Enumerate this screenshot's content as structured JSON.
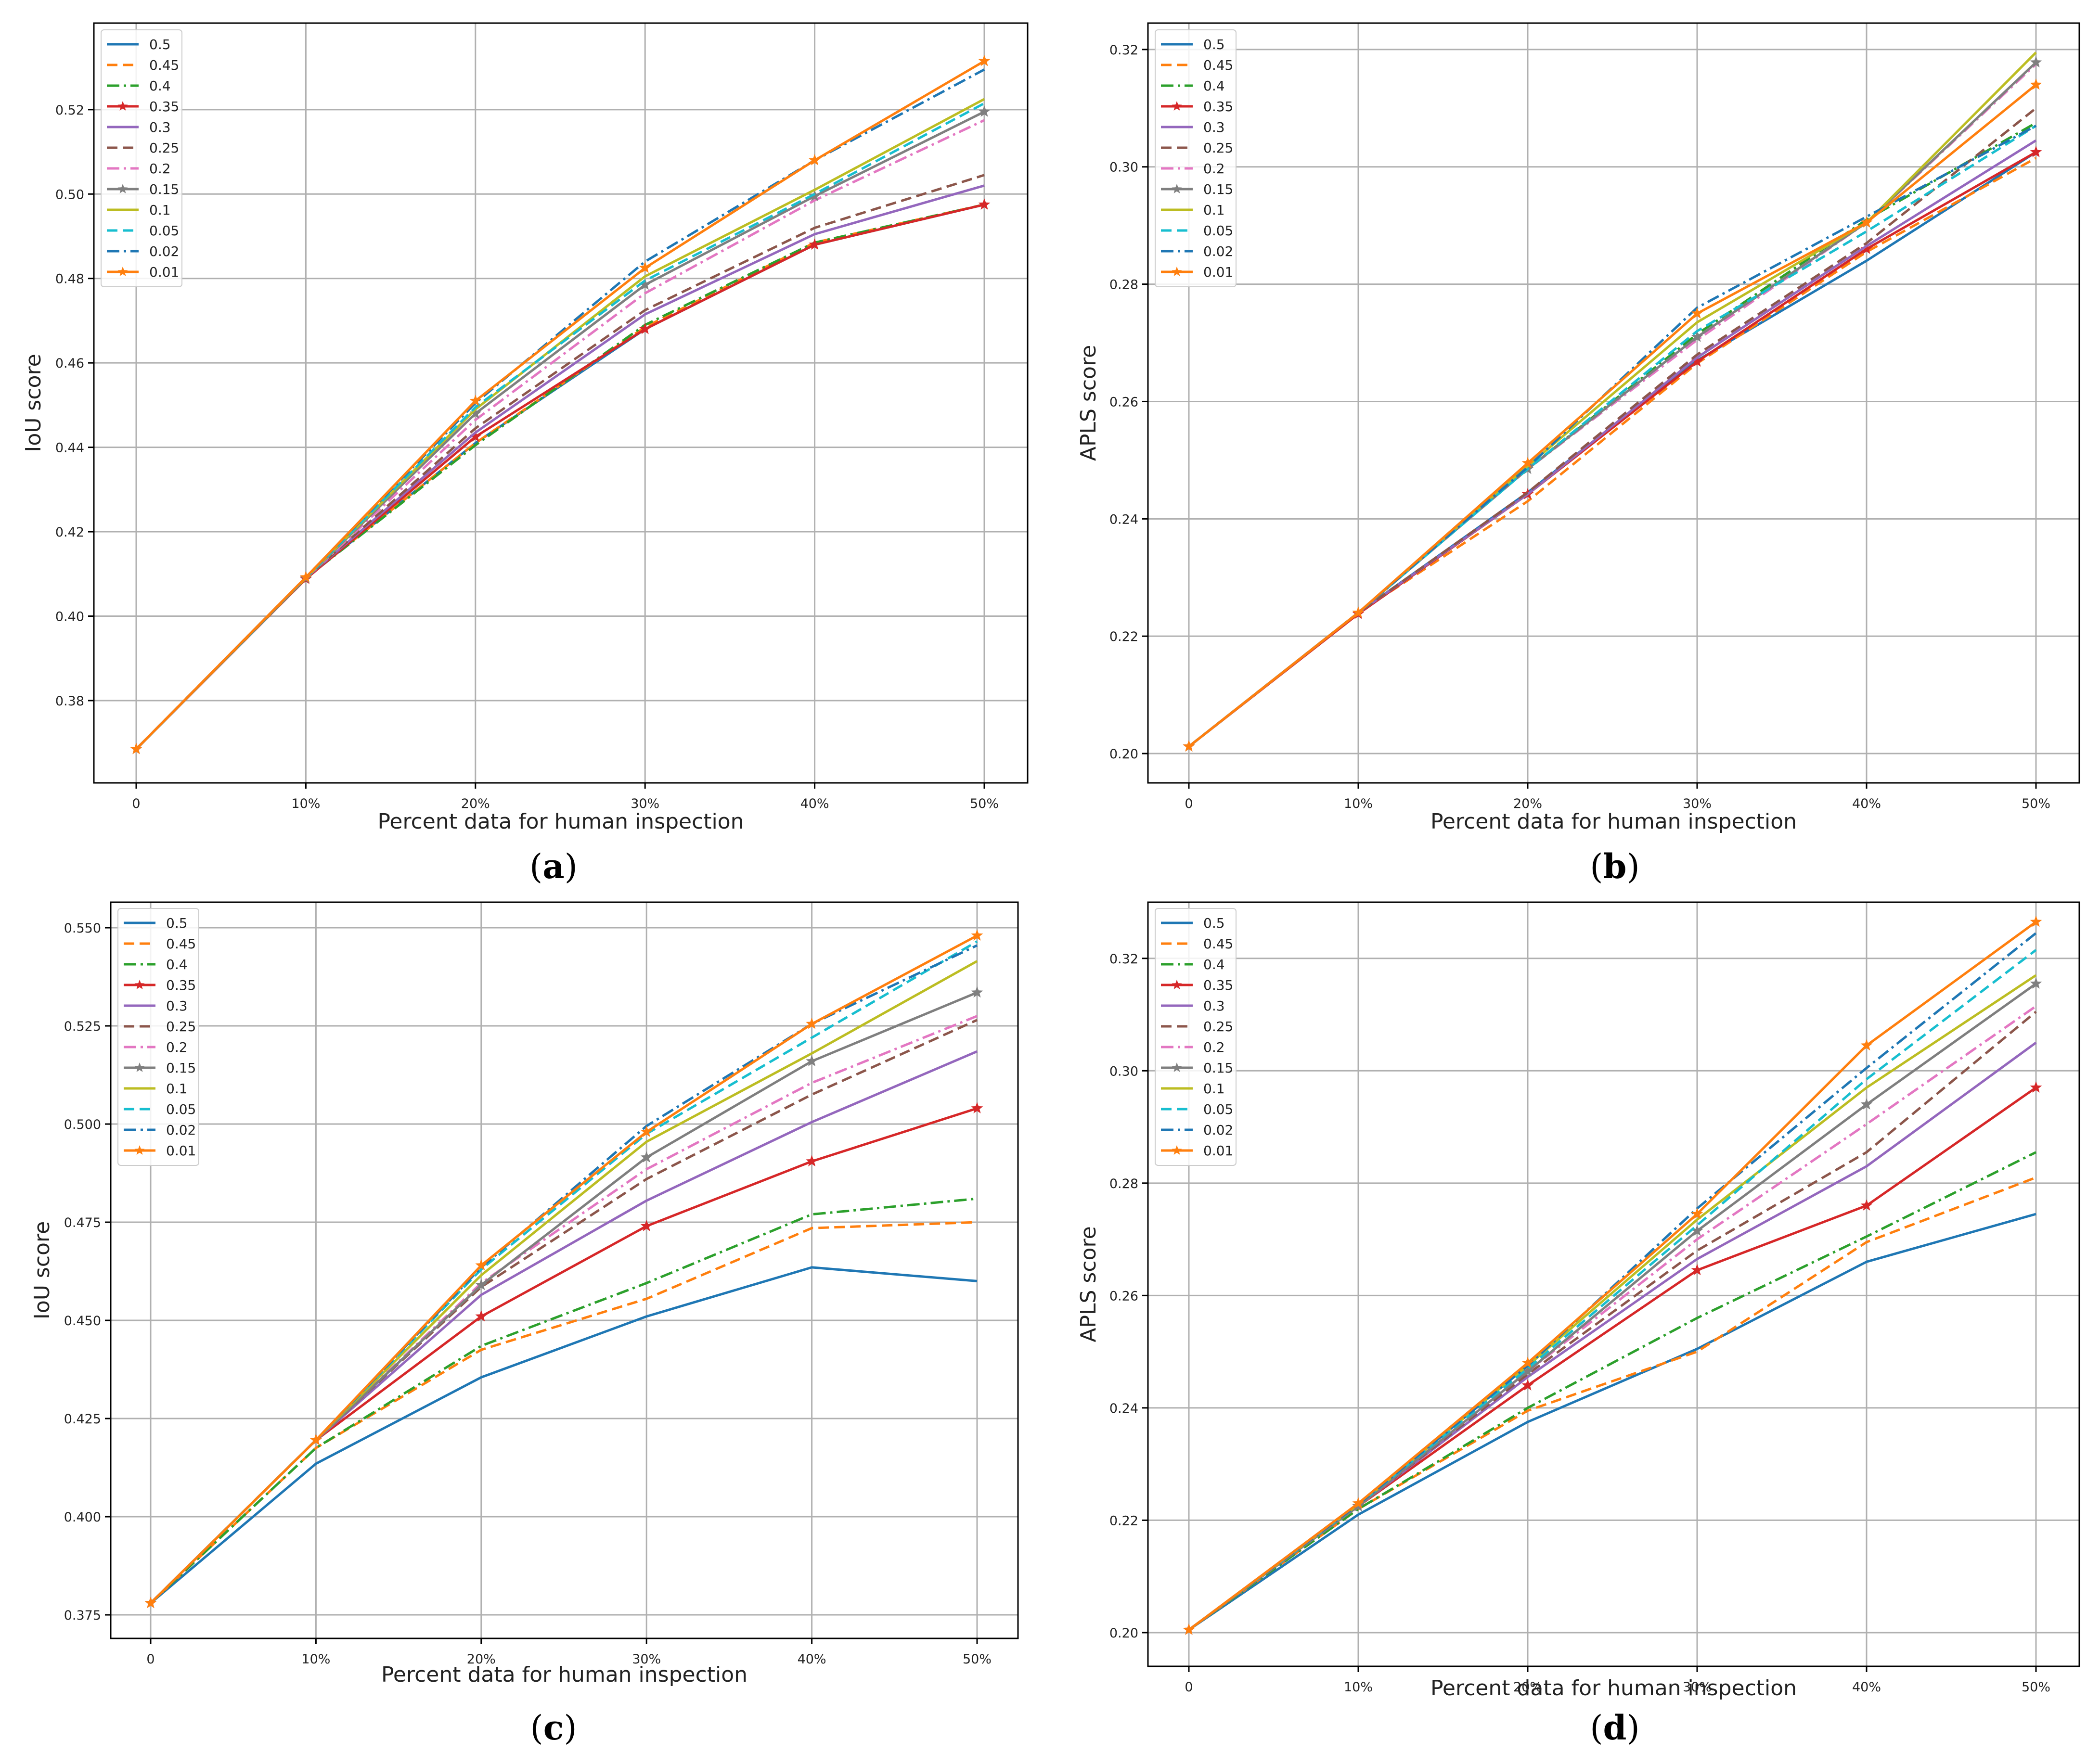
{
  "figure": {
    "panel_labels": [
      "(a)",
      "(b)",
      "(c)",
      "(d)"
    ],
    "colors": {
      "0.5": "#1f77b4",
      "0.45": "#ff7f0e",
      "0.4": "#2ca02c",
      "0.35": "#d62728",
      "0.3": "#9467bd",
      "0.25": "#8c564b",
      "0.2": "#e377c2",
      "0.15": "#7f7f7f",
      "0.1": "#bcbd22",
      "0.05": "#17becf",
      "0.02": "#1f77b4",
      "0.01": "#ff7f0e"
    },
    "styles": {
      "0.5": "solid",
      "0.45": "dashed",
      "0.4": "dashdot",
      "0.35": "solid-star",
      "0.3": "solid",
      "0.25": "dashed",
      "0.2": "dashdot",
      "0.15": "solid-star",
      "0.1": "solid",
      "0.05": "dashed",
      "0.02": "dashdot",
      "0.01": "solid-star"
    }
  },
  "chart_data": [
    {
      "type": "line",
      "panel": "(a)",
      "xlabel": "Percent data for human inspection",
      "ylabel": "IoU score",
      "categories": [
        "0",
        "10%",
        "20%",
        "30%",
        "40%",
        "50%"
      ],
      "yticks": [
        "0.38",
        "0.40",
        "0.42",
        "0.44",
        "0.46",
        "0.48",
        "0.50",
        "0.52"
      ],
      "ylim": [
        0.3605,
        0.5405
      ],
      "legend_position": "upper-left",
      "series": [
        {
          "name": "0.5",
          "values": [
            0.3685,
            0.409,
            0.441,
            0.468,
            0.488,
            0.4975
          ]
        },
        {
          "name": "0.45",
          "values": [
            0.3685,
            0.409,
            0.441,
            0.4685,
            0.4885,
            0.4975
          ]
        },
        {
          "name": "0.4",
          "values": [
            0.3685,
            0.409,
            0.4405,
            0.469,
            0.4885,
            0.4975
          ]
        },
        {
          "name": "0.35",
          "values": [
            0.3685,
            0.4088,
            0.4425,
            0.468,
            0.488,
            0.4975
          ]
        },
        {
          "name": "0.3",
          "values": [
            0.3685,
            0.409,
            0.4435,
            0.4715,
            0.4905,
            0.502
          ]
        },
        {
          "name": "0.25",
          "values": [
            0.3685,
            0.409,
            0.4445,
            0.4725,
            0.492,
            0.5045
          ]
        },
        {
          "name": "0.2",
          "values": [
            0.3685,
            0.409,
            0.4465,
            0.4765,
            0.4985,
            0.5175
          ]
        },
        {
          "name": "0.15",
          "values": [
            0.3685,
            0.409,
            0.448,
            0.4785,
            0.4995,
            0.5195
          ]
        },
        {
          "name": "0.1",
          "values": [
            0.3685,
            0.409,
            0.449,
            0.4805,
            0.501,
            0.5225
          ]
        },
        {
          "name": "0.05",
          "values": [
            0.3685,
            0.409,
            0.4495,
            0.4795,
            0.5,
            0.5215
          ]
        },
        {
          "name": "0.02",
          "values": [
            0.3685,
            0.4092,
            0.4505,
            0.484,
            0.508,
            0.5295
          ]
        },
        {
          "name": "0.01",
          "values": [
            0.3685,
            0.4092,
            0.451,
            0.4825,
            0.508,
            0.5315
          ]
        }
      ]
    },
    {
      "type": "line",
      "panel": "(b)",
      "xlabel": "Percent data for human inspection",
      "ylabel": "APLS score",
      "categories": [
        "0",
        "10%",
        "20%",
        "30%",
        "40%",
        "50%"
      ],
      "yticks": [
        "0.20",
        "0.22",
        "0.24",
        "0.26",
        "0.28",
        "0.30",
        "0.32"
      ],
      "ylim": [
        0.195,
        0.3245
      ],
      "legend_position": "upper-left",
      "series": [
        {
          "name": "0.5",
          "values": [
            0.2012,
            0.224,
            0.2445,
            0.267,
            0.284,
            0.3025
          ]
        },
        {
          "name": "0.45",
          "values": [
            0.2012,
            0.224,
            0.243,
            0.2665,
            0.2855,
            0.3015
          ]
        },
        {
          "name": "0.4",
          "values": [
            0.2012,
            0.224,
            0.2485,
            0.2715,
            0.291,
            0.3075
          ]
        },
        {
          "name": "0.35",
          "values": [
            0.2012,
            0.2238,
            0.2442,
            0.2668,
            0.286,
            0.3025
          ]
        },
        {
          "name": "0.3",
          "values": [
            0.2012,
            0.224,
            0.2442,
            0.2675,
            0.2865,
            0.3045
          ]
        },
        {
          "name": "0.25",
          "values": [
            0.2012,
            0.224,
            0.2445,
            0.268,
            0.287,
            0.31
          ]
        },
        {
          "name": "0.2",
          "values": [
            0.2012,
            0.224,
            0.2485,
            0.2705,
            0.2905,
            0.3175
          ]
        },
        {
          "name": "0.15",
          "values": [
            0.2012,
            0.224,
            0.2485,
            0.271,
            0.2905,
            0.3178
          ]
        },
        {
          "name": "0.1",
          "values": [
            0.2012,
            0.224,
            0.249,
            0.2735,
            0.2905,
            0.3195
          ]
        },
        {
          "name": "0.05",
          "values": [
            0.2012,
            0.224,
            0.2485,
            0.272,
            0.289,
            0.307
          ]
        },
        {
          "name": "0.02",
          "values": [
            0.2012,
            0.224,
            0.2488,
            0.276,
            0.2915,
            0.307
          ]
        },
        {
          "name": "0.01",
          "values": [
            0.2012,
            0.224,
            0.2495,
            0.275,
            0.2905,
            0.314
          ]
        }
      ]
    },
    {
      "type": "line",
      "panel": "(c)",
      "xlabel": "Percent data for human inspection",
      "ylabel": "IoU score",
      "categories": [
        "0",
        "10%",
        "20%",
        "30%",
        "40%",
        "50%"
      ],
      "yticks": [
        "0.375",
        "0.400",
        "0.425",
        "0.450",
        "0.475",
        "0.500",
        "0.525",
        "0.550"
      ],
      "ylim": [
        0.369,
        0.5565
      ],
      "legend_position": "upper-left",
      "series": [
        {
          "name": "0.5",
          "values": [
            0.378,
            0.4135,
            0.4355,
            0.451,
            0.4635,
            0.46
          ]
        },
        {
          "name": "0.45",
          "values": [
            0.378,
            0.4175,
            0.4425,
            0.4555,
            0.4735,
            0.475
          ]
        },
        {
          "name": "0.4",
          "values": [
            0.378,
            0.4175,
            0.4435,
            0.4595,
            0.477,
            0.481
          ]
        },
        {
          "name": "0.35",
          "values": [
            0.378,
            0.4195,
            0.451,
            0.474,
            0.4905,
            0.504
          ]
        },
        {
          "name": "0.3",
          "values": [
            0.378,
            0.4195,
            0.4565,
            0.4805,
            0.5005,
            0.5185
          ]
        },
        {
          "name": "0.25",
          "values": [
            0.378,
            0.4195,
            0.4585,
            0.486,
            0.5075,
            0.5265
          ]
        },
        {
          "name": "0.2",
          "values": [
            0.378,
            0.4195,
            0.4595,
            0.4885,
            0.5105,
            0.5275
          ]
        },
        {
          "name": "0.15",
          "values": [
            0.378,
            0.4195,
            0.459,
            0.4915,
            0.516,
            0.5335
          ]
        },
        {
          "name": "0.1",
          "values": [
            0.378,
            0.4195,
            0.4615,
            0.4955,
            0.518,
            0.5415
          ]
        },
        {
          "name": "0.05",
          "values": [
            0.378,
            0.4195,
            0.463,
            0.4975,
            0.522,
            0.5465
          ]
        },
        {
          "name": "0.02",
          "values": [
            0.378,
            0.4195,
            0.4635,
            0.4995,
            0.5255,
            0.5455
          ]
        },
        {
          "name": "0.01",
          "values": [
            0.378,
            0.4195,
            0.464,
            0.498,
            0.5255,
            0.548
          ]
        }
      ]
    },
    {
      "type": "line",
      "panel": "(d)",
      "xlabel": "Percent data for human inspection",
      "ylabel": "APLS score",
      "categories": [
        "0",
        "10%",
        "20%",
        "30%",
        "40%",
        "50%"
      ],
      "yticks": [
        "0.20",
        "0.22",
        "0.24",
        "0.26",
        "0.28",
        "0.30",
        "0.32"
      ],
      "ylim": [
        0.194,
        0.33
      ],
      "legend_position": "upper-left",
      "series": [
        {
          "name": "0.5",
          "values": [
            0.2005,
            0.221,
            0.2375,
            0.2505,
            0.266,
            0.2745
          ]
        },
        {
          "name": "0.45",
          "values": [
            0.2005,
            0.222,
            0.2395,
            0.25,
            0.2695,
            0.281
          ]
        },
        {
          "name": "0.4",
          "values": [
            0.2005,
            0.222,
            0.24,
            0.256,
            0.2705,
            0.2855
          ]
        },
        {
          "name": "0.35",
          "values": [
            0.2005,
            0.2225,
            0.244,
            0.2645,
            0.276,
            0.297
          ]
        },
        {
          "name": "0.3",
          "values": [
            0.2005,
            0.2225,
            0.2455,
            0.2665,
            0.283,
            0.305
          ]
        },
        {
          "name": "0.25",
          "values": [
            0.2005,
            0.2225,
            0.246,
            0.268,
            0.2855,
            0.3105
          ]
        },
        {
          "name": "0.2",
          "values": [
            0.2005,
            0.2225,
            0.2465,
            0.27,
            0.2905,
            0.3115
          ]
        },
        {
          "name": "0.15",
          "values": [
            0.2005,
            0.2225,
            0.2465,
            0.2715,
            0.294,
            0.3155
          ]
        },
        {
          "name": "0.1",
          "values": [
            0.2005,
            0.2228,
            0.2475,
            0.2735,
            0.297,
            0.317
          ]
        },
        {
          "name": "0.05",
          "values": [
            0.2005,
            0.2228,
            0.247,
            0.2725,
            0.2985,
            0.3215
          ]
        },
        {
          "name": "0.02",
          "values": [
            0.2005,
            0.2228,
            0.2475,
            0.2755,
            0.3005,
            0.3245
          ]
        },
        {
          "name": "0.01",
          "values": [
            0.2005,
            0.223,
            0.248,
            0.2745,
            0.3045,
            0.3265
          ]
        }
      ]
    }
  ]
}
